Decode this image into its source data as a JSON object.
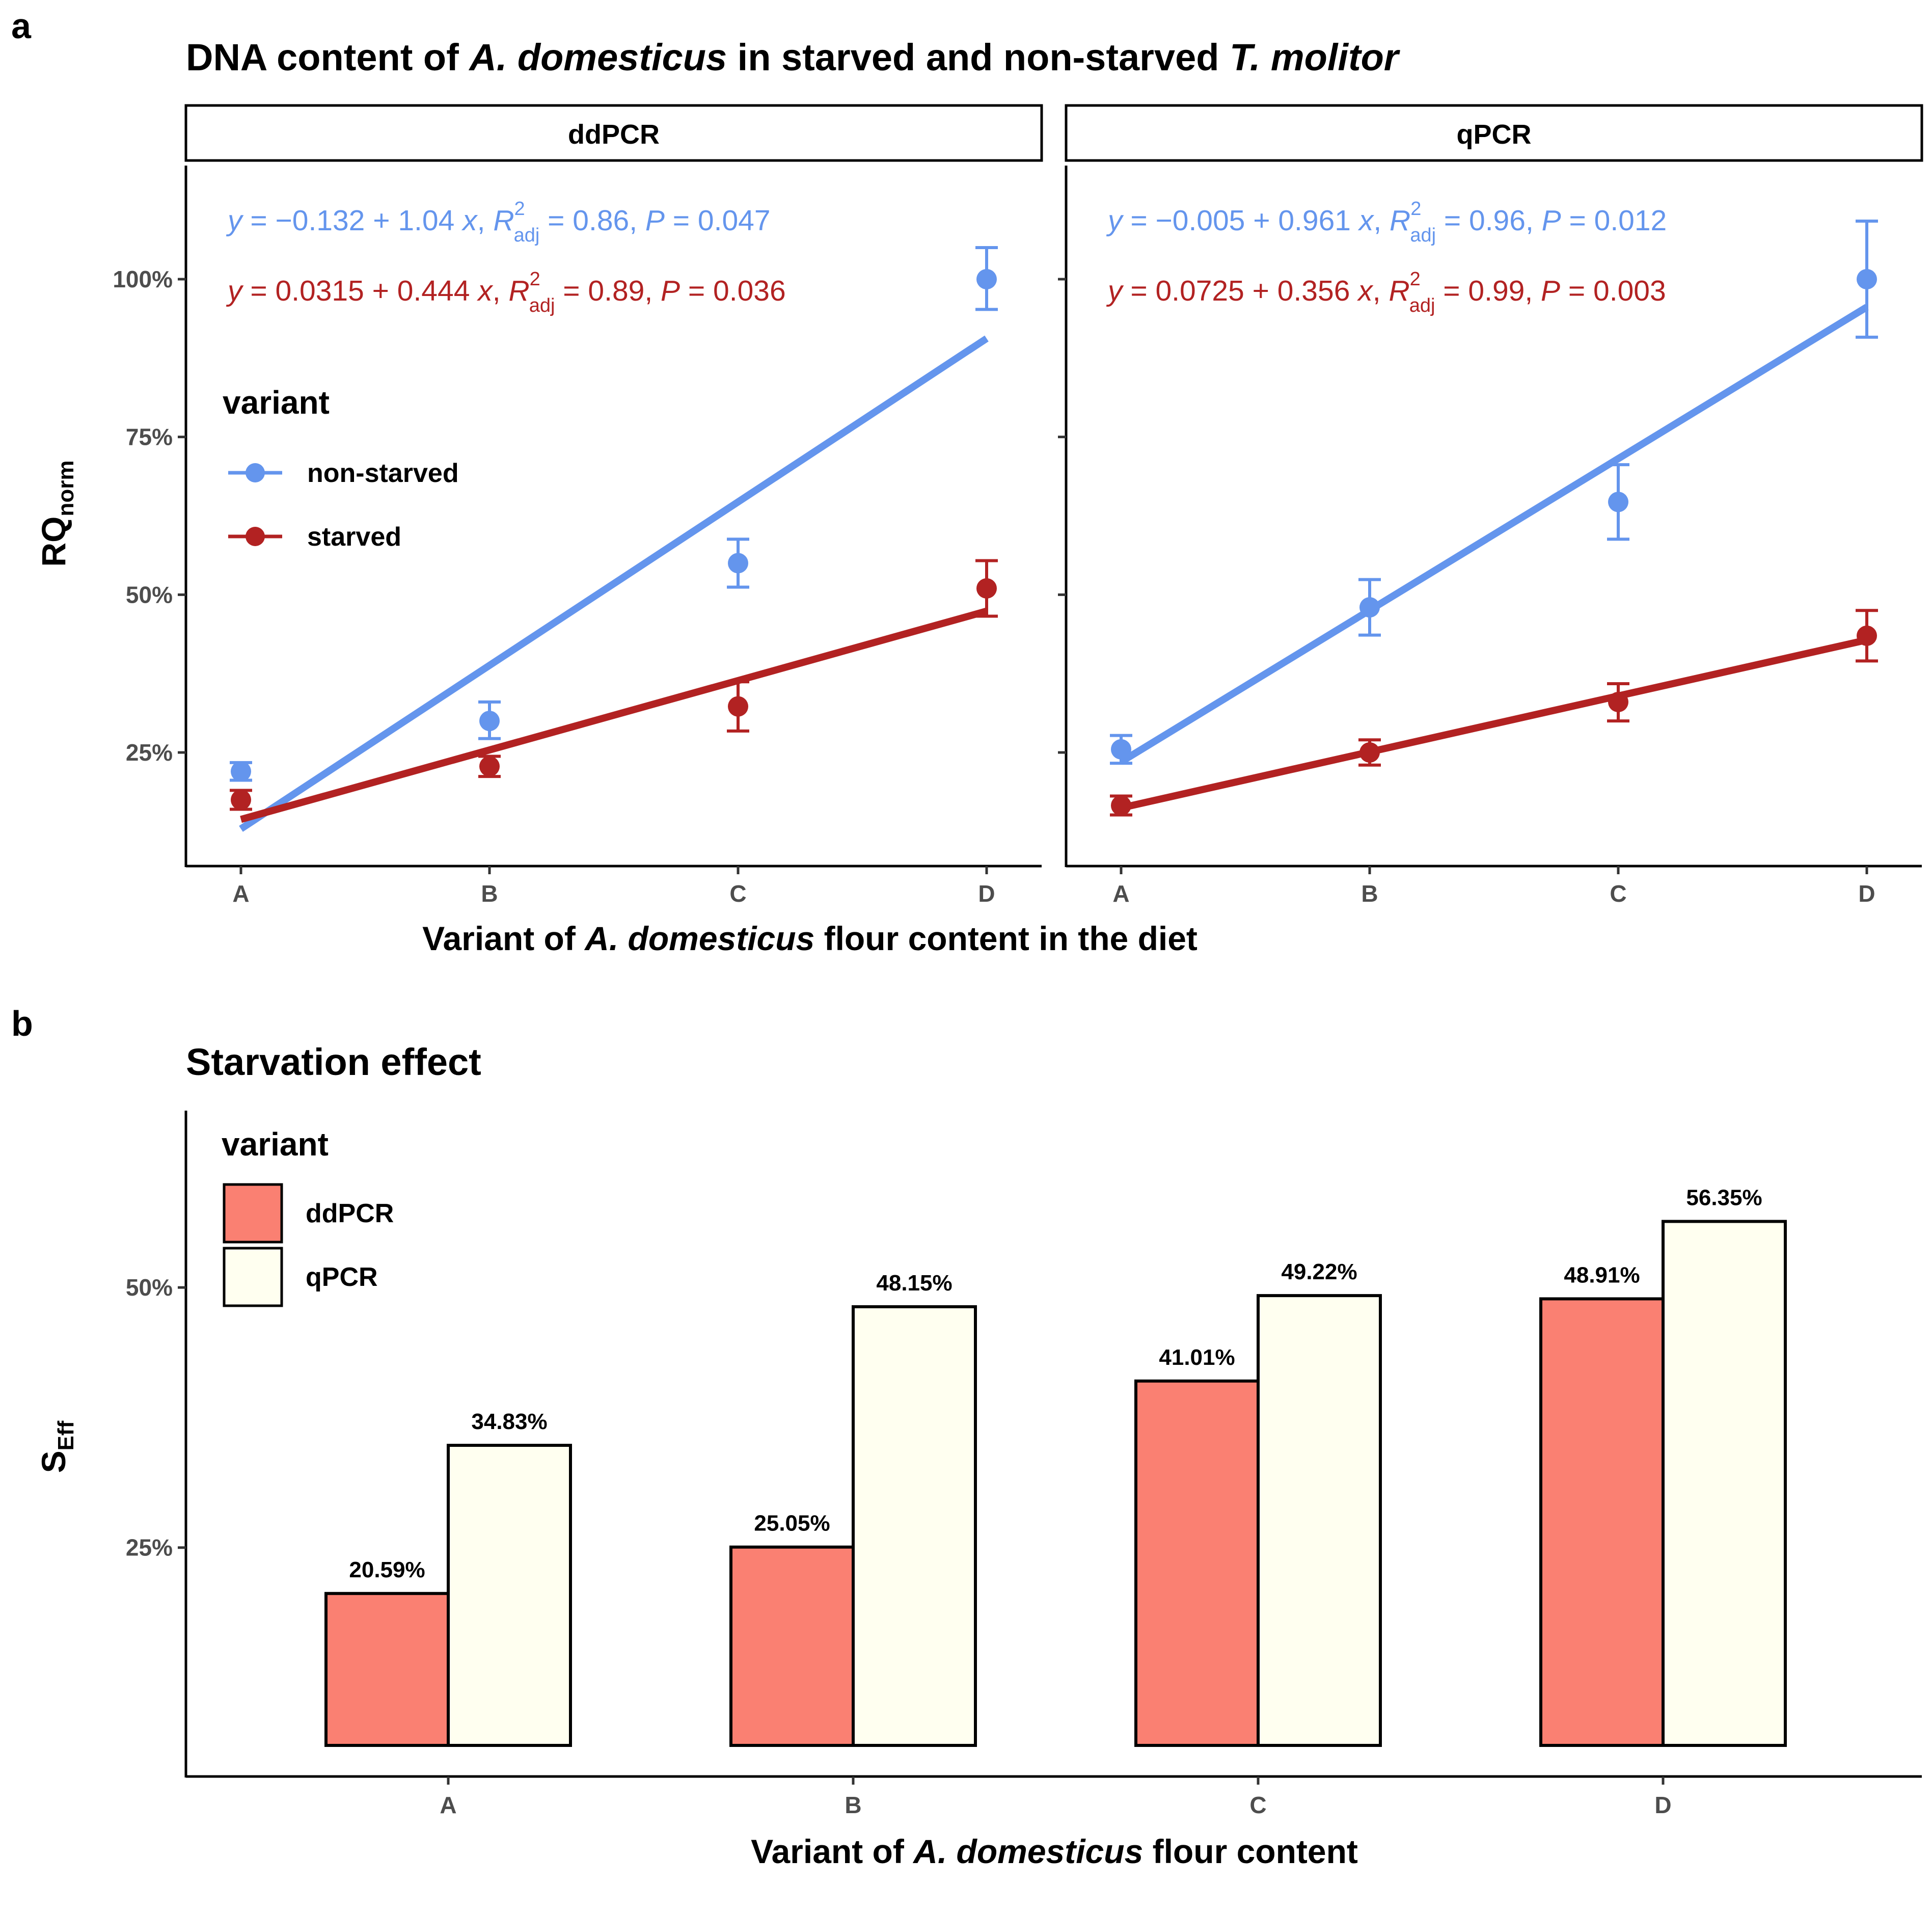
{
  "figure": {
    "panel_a_label": "a",
    "panel_b_label": "b"
  },
  "chart_data": [
    {
      "type": "scatter",
      "title_parts": [
        "DNA content of ",
        "A. domesticus",
        " in starved and non-starved ",
        "T. molitor"
      ],
      "xlabel_parts": [
        "Variant of ",
        "A. domesticus",
        " flour content in the diet"
      ],
      "ylabel": "RQ",
      "ylabel_sub": "norm",
      "categories": [
        "A",
        "B",
        "C",
        "D"
      ],
      "ylim": [
        7,
        118
      ],
      "yticks": [
        25,
        50,
        75,
        100
      ],
      "ytick_labels": [
        "25%",
        "50%",
        "75%",
        "100%"
      ],
      "legend": {
        "title": "variant",
        "entries": [
          "non-starved",
          "starved"
        ],
        "position": "inside-left"
      },
      "colors": {
        "non-starved": "#6495ed",
        "starved": "#b22222"
      },
      "facets": [
        {
          "label": "ddPCR",
          "series": [
            {
              "name": "non-starved",
              "values": [
                22,
                30,
                55,
                100
              ],
              "err_low": [
                20.6,
                27.2,
                51.2,
                95.2
              ],
              "err_high": [
                23.4,
                33.0,
                58.8,
                105.0
              ],
              "fit": {
                "intercept": -0.132,
                "slope": 1.04,
                "x_start": 1,
                "x_end": 4.0
              },
              "equation": {
                "intercept": "−0.132",
                "slope": "1.04",
                "r2": "0.86",
                "p": "0.047"
              }
            },
            {
              "name": "starved",
              "values": [
                17.5,
                22.8,
                32.3,
                51
              ],
              "err_low": [
                16.0,
                21.2,
                28.4,
                46.6
              ],
              "err_high": [
                19.0,
                24.4,
                36.2,
                55.4
              ],
              "fit": {
                "intercept": 0.0315,
                "slope": 0.444,
                "x_start": 1,
                "x_end": 4.0
              },
              "equation": {
                "intercept": "0.0315",
                "slope": "0.444",
                "r2": "0.89",
                "p": "0.036"
              }
            }
          ]
        },
        {
          "label": "qPCR",
          "series": [
            {
              "name": "non-starved",
              "values": [
                25.5,
                48,
                64.7,
                100
              ],
              "err_low": [
                23.3,
                43.6,
                58.8,
                90.8
              ],
              "err_high": [
                27.7,
                52.4,
                70.6,
                109.2
              ],
              "fit": {
                "intercept": -0.005,
                "slope": 0.961,
                "x_start": 1,
                "x_end": 4.0
              },
              "equation": {
                "intercept": "−0.005",
                "slope": "0.961",
                "r2": "0.96",
                "p": "0.012"
              }
            },
            {
              "name": "starved",
              "values": [
                16.6,
                25,
                33,
                43.5
              ],
              "err_low": [
                15.1,
                23.0,
                30.0,
                39.5
              ],
              "err_high": [
                18.1,
                27.0,
                35.9,
                47.5
              ],
              "fit": {
                "intercept": 0.0725,
                "slope": 0.356,
                "x_start": 1,
                "x_end": 4.0
              },
              "equation": {
                "intercept": "0.0725",
                "slope": "0.356",
                "r2": "0.99",
                "p": "0.003"
              }
            }
          ]
        }
      ]
    },
    {
      "type": "bar",
      "title": "Starvation effect",
      "xlabel_parts": [
        "Variant of ",
        "A. domesticus",
        " flour content"
      ],
      "ylabel": "S",
      "ylabel_sub": "Eff",
      "categories": [
        "A",
        "B",
        "C",
        "D"
      ],
      "ylim": [
        3,
        67
      ],
      "yticks": [
        25,
        50
      ],
      "ytick_labels": [
        "25%",
        "50%"
      ],
      "legend": {
        "title": "variant",
        "entries": [
          "ddPCR",
          "qPCR"
        ],
        "position": "inside-top-left"
      },
      "colors": {
        "ddPCR": "#fa8072",
        "qPCR": "#fffff0"
      },
      "series": [
        {
          "name": "ddPCR",
          "values": [
            20.59,
            25.05,
            41.01,
            48.91
          ],
          "labels": [
            "20.59%",
            "25.05%",
            "41.01%",
            "48.91%"
          ]
        },
        {
          "name": "qPCR",
          "values": [
            34.83,
            48.15,
            49.22,
            56.35
          ],
          "labels": [
            "34.83%",
            "48.15%",
            "49.22%",
            "56.35%"
          ]
        }
      ]
    }
  ]
}
